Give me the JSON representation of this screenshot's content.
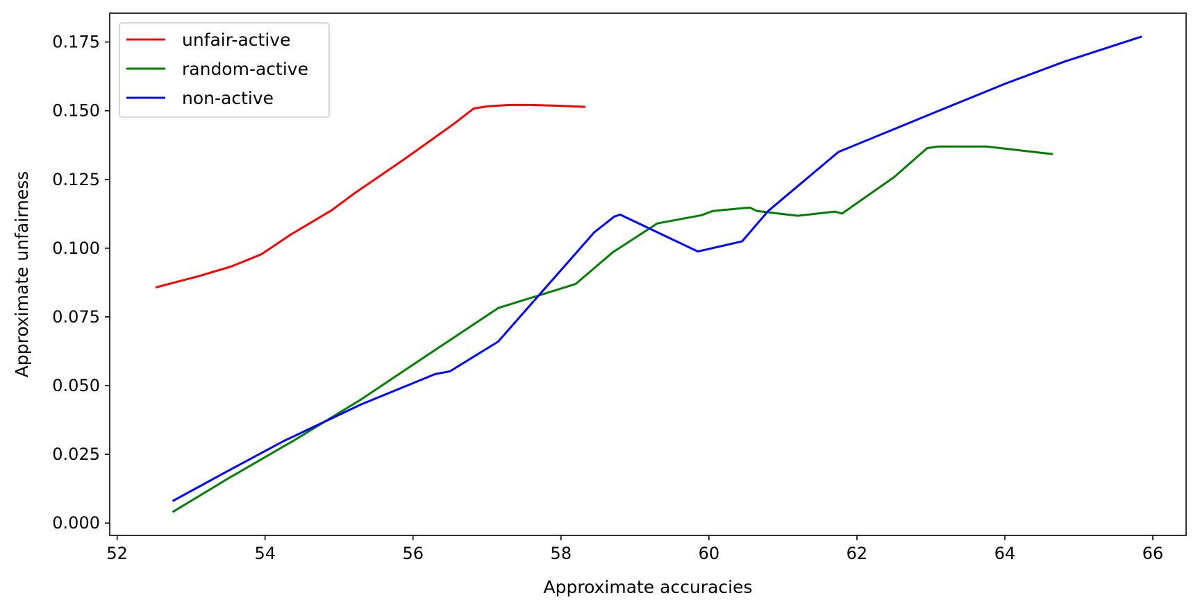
{
  "chart_data": {
    "type": "line",
    "title": "",
    "xlabel": "Approximate accuracies",
    "ylabel": "Approximate unfairness",
    "xlim": [
      51.9,
      66.45
    ],
    "ylim": [
      -0.0045,
      0.1855
    ],
    "xticks": [
      52,
      54,
      56,
      58,
      60,
      62,
      64,
      66
    ],
    "yticks": [
      0.0,
      0.025,
      0.05,
      0.075,
      0.1,
      0.125,
      0.15,
      0.175
    ],
    "xtick_labels": [
      "52",
      "54",
      "56",
      "58",
      "60",
      "62",
      "64",
      "66"
    ],
    "ytick_labels": [
      "0.000",
      "0.025",
      "0.050",
      "0.075",
      "0.100",
      "0.125",
      "0.150",
      "0.175"
    ],
    "grid": false,
    "legend_position": "top-left",
    "series": [
      {
        "name": "unfair-active",
        "color": "#ff0000",
        "x": [
          52.52,
          53.1,
          53.55,
          53.95,
          54.35,
          54.9,
          55.2,
          55.9,
          56.55,
          56.82,
          57.0,
          57.3,
          57.6,
          58.0,
          58.33
        ],
        "y": [
          0.0857,
          0.0898,
          0.0934,
          0.0978,
          0.105,
          0.1138,
          0.1198,
          0.1327,
          0.1452,
          0.1508,
          0.1516,
          0.1521,
          0.1521,
          0.1518,
          0.1514
        ]
      },
      {
        "name": "random-active",
        "color": "#008000",
        "x": [
          52.75,
          53.5,
          54.4,
          55.3,
          56.2,
          57.15,
          58.2,
          58.7,
          59.3,
          59.9,
          60.05,
          60.55,
          60.65,
          61.2,
          61.4,
          61.7,
          61.8,
          62.5,
          62.95,
          63.1,
          63.75,
          64.65
        ],
        "y": [
          0.004,
          0.0162,
          0.0302,
          0.045,
          0.0612,
          0.0782,
          0.087,
          0.0985,
          0.109,
          0.112,
          0.1135,
          0.1148,
          0.1135,
          0.1118,
          0.1124,
          0.1133,
          0.1126,
          0.1258,
          0.1364,
          0.137,
          0.137,
          0.1342
        ]
      },
      {
        "name": "non-active",
        "color": "#0000ff",
        "x": [
          52.75,
          53.5,
          54.25,
          55.3,
          56.3,
          56.5,
          57.15,
          58.45,
          58.72,
          58.8,
          59.85,
          60.45,
          60.8,
          61.75,
          63.0,
          64.0,
          64.8,
          65.85
        ],
        "y": [
          0.008,
          0.019,
          0.0298,
          0.0432,
          0.0542,
          0.0552,
          0.066,
          0.1058,
          0.1115,
          0.1122,
          0.0988,
          0.1025,
          0.1135,
          0.135,
          0.1488,
          0.1598,
          0.1678,
          0.177
        ]
      }
    ]
  }
}
